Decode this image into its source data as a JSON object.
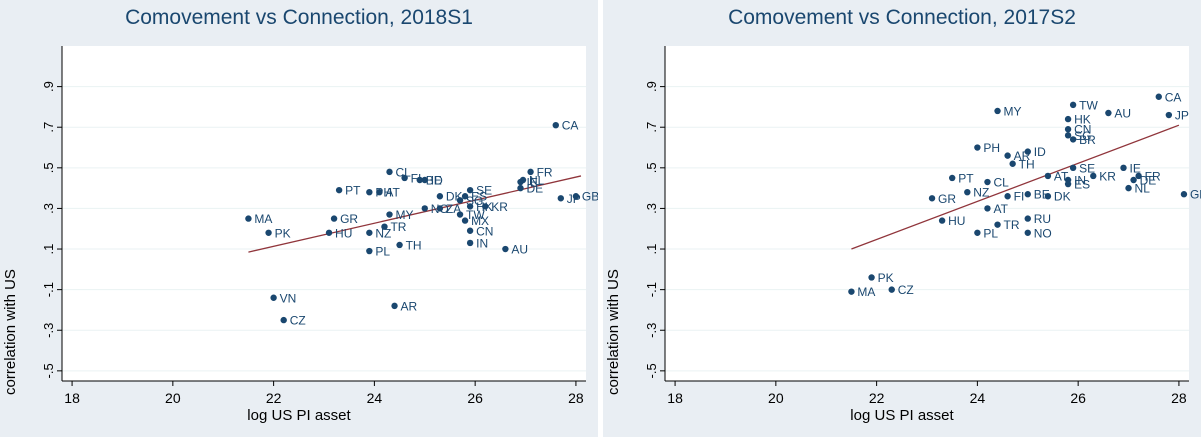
{
  "chart_data": [
    {
      "type": "scatter",
      "title": "Comovement vs Connection, 2018S1",
      "xlabel": "log US PI asset",
      "ylabel": "correlation with US",
      "xlim": [
        17.8,
        28.2
      ],
      "ylim": [
        -0.55,
        1.1
      ],
      "xticks": [
        18,
        20,
        22,
        24,
        26,
        28
      ],
      "xtick_labels": [
        "18",
        "20",
        "22",
        "24",
        "26",
        "28"
      ],
      "yticks": [
        -0.5,
        -0.3,
        -0.1,
        0.1,
        0.3,
        0.5,
        0.7,
        0.9
      ],
      "ytick_labels": [
        "-.5",
        "-.3",
        "-.1",
        ".1",
        ".3",
        ".5",
        ".7",
        ".9"
      ],
      "grid": true,
      "fit_line": {
        "x": [
          21.5,
          28.1
        ],
        "y": [
          0.085,
          0.46
        ]
      },
      "points": [
        {
          "label": "CA",
          "x": 27.6,
          "y": 0.71
        },
        {
          "label": "FR",
          "x": 27.1,
          "y": 0.48
        },
        {
          "label": "NL",
          "x": 26.95,
          "y": 0.44
        },
        {
          "label": "IE",
          "x": 26.9,
          "y": 0.43
        },
        {
          "label": "DE",
          "x": 26.9,
          "y": 0.4
        },
        {
          "label": "JP",
          "x": 27.7,
          "y": 0.35
        },
        {
          "label": "GB",
          "x": 28.0,
          "y": 0.36
        },
        {
          "label": "CL",
          "x": 24.3,
          "y": 0.48
        },
        {
          "label": "FI",
          "x": 24.6,
          "y": 0.45
        },
        {
          "label": "BE",
          "x": 24.9,
          "y": 0.44
        },
        {
          "label": "ID",
          "x": 25.0,
          "y": 0.44
        },
        {
          "label": "PT",
          "x": 23.3,
          "y": 0.39
        },
        {
          "label": "PH",
          "x": 23.9,
          "y": 0.38
        },
        {
          "label": "AT",
          "x": 24.1,
          "y": 0.38
        },
        {
          "label": "SE",
          "x": 25.9,
          "y": 0.39
        },
        {
          "label": "DK",
          "x": 25.3,
          "y": 0.36
        },
        {
          "label": "ES",
          "x": 25.8,
          "y": 0.36
        },
        {
          "label": "SG",
          "x": 25.7,
          "y": 0.34
        },
        {
          "label": "KR",
          "x": 26.2,
          "y": 0.31
        },
        {
          "label": "HK",
          "x": 25.9,
          "y": 0.31
        },
        {
          "label": "NO",
          "x": 25.0,
          "y": 0.3
        },
        {
          "label": "ZA",
          "x": 25.3,
          "y": 0.3
        },
        {
          "label": "TW",
          "x": 25.7,
          "y": 0.27
        },
        {
          "label": "MX",
          "x": 25.8,
          "y": 0.24
        },
        {
          "label": "MY",
          "x": 24.3,
          "y": 0.27
        },
        {
          "label": "MA",
          "x": 21.5,
          "y": 0.25
        },
        {
          "label": "GR",
          "x": 23.2,
          "y": 0.25
        },
        {
          "label": "TR",
          "x": 24.2,
          "y": 0.21
        },
        {
          "label": "NZ",
          "x": 23.9,
          "y": 0.18
        },
        {
          "label": "PK",
          "x": 21.9,
          "y": 0.18
        },
        {
          "label": "HU",
          "x": 23.1,
          "y": 0.18
        },
        {
          "label": "CN",
          "x": 25.9,
          "y": 0.19
        },
        {
          "label": "TH",
          "x": 24.5,
          "y": 0.12
        },
        {
          "label": "IN",
          "x": 25.9,
          "y": 0.13
        },
        {
          "label": "AU",
          "x": 26.6,
          "y": 0.1
        },
        {
          "label": "PL",
          "x": 23.9,
          "y": 0.09
        },
        {
          "label": "VN",
          "x": 22.0,
          "y": -0.14
        },
        {
          "label": "AR",
          "x": 24.4,
          "y": -0.18
        },
        {
          "label": "CZ",
          "x": 22.2,
          "y": -0.25
        }
      ]
    },
    {
      "type": "scatter",
      "title": "Comovement vs Connection, 2017S2",
      "xlabel": "log US PI asset",
      "ylabel": "correlation with US",
      "xlim": [
        17.8,
        28.2
      ],
      "ylim": [
        -0.55,
        1.1
      ],
      "xticks": [
        18,
        20,
        22,
        24,
        26,
        28
      ],
      "xtick_labels": [
        "18",
        "20",
        "22",
        "24",
        "26",
        "28"
      ],
      "yticks": [
        -0.5,
        -0.3,
        -0.1,
        0.1,
        0.3,
        0.5,
        0.7,
        0.9
      ],
      "ytick_labels": [
        "-.5",
        "-.3",
        "-.1",
        ".1",
        ".3",
        ".5",
        ".7",
        ".9"
      ],
      "grid": true,
      "fit_line": {
        "x": [
          21.5,
          28.0
        ],
        "y": [
          0.1,
          0.71
        ]
      },
      "points": [
        {
          "label": "CA",
          "x": 27.6,
          "y": 0.85
        },
        {
          "label": "JP",
          "x": 27.8,
          "y": 0.76
        },
        {
          "label": "TW",
          "x": 25.9,
          "y": 0.81
        },
        {
          "label": "MY",
          "x": 24.4,
          "y": 0.78
        },
        {
          "label": "AU",
          "x": 26.6,
          "y": 0.77
        },
        {
          "label": "HK",
          "x": 25.8,
          "y": 0.74
        },
        {
          "label": "CN",
          "x": 25.8,
          "y": 0.69
        },
        {
          "label": "SG",
          "x": 25.8,
          "y": 0.66
        },
        {
          "label": "BR",
          "x": 25.9,
          "y": 0.64
        },
        {
          "label": "PH",
          "x": 24.0,
          "y": 0.6
        },
        {
          "label": "ID",
          "x": 25.0,
          "y": 0.58
        },
        {
          "label": "AR",
          "x": 24.6,
          "y": 0.56
        },
        {
          "label": "TH",
          "x": 24.7,
          "y": 0.52
        },
        {
          "label": "SE",
          "x": 25.9,
          "y": 0.5
        },
        {
          "label": "IE",
          "x": 26.9,
          "y": 0.5
        },
        {
          "label": "FR",
          "x": 27.2,
          "y": 0.46
        },
        {
          "label": "DE",
          "x": 27.1,
          "y": 0.44
        },
        {
          "label": "KR",
          "x": 26.3,
          "y": 0.46
        },
        {
          "label": "AT",
          "x": 25.4,
          "y": 0.46
        },
        {
          "label": "IN",
          "x": 25.8,
          "y": 0.44
        },
        {
          "label": "ES",
          "x": 25.8,
          "y": 0.42
        },
        {
          "label": "PT",
          "x": 23.5,
          "y": 0.45
        },
        {
          "label": "CL",
          "x": 24.2,
          "y": 0.43
        },
        {
          "label": "NL",
          "x": 27.0,
          "y": 0.4
        },
        {
          "label": "NZ",
          "x": 23.8,
          "y": 0.38
        },
        {
          "label": "BE",
          "x": 25.0,
          "y": 0.37
        },
        {
          "label": "DK",
          "x": 25.4,
          "y": 0.36
        },
        {
          "label": "FI",
          "x": 24.6,
          "y": 0.36
        },
        {
          "label": "GR",
          "x": 23.1,
          "y": 0.35
        },
        {
          "label": "GB",
          "x": 28.1,
          "y": 0.37
        },
        {
          "label": "AT",
          "x": 24.2,
          "y": 0.3
        },
        {
          "label": "RU",
          "x": 25.0,
          "y": 0.25
        },
        {
          "label": "HU",
          "x": 23.3,
          "y": 0.24
        },
        {
          "label": "TR",
          "x": 24.4,
          "y": 0.22
        },
        {
          "label": "PL",
          "x": 24.0,
          "y": 0.18
        },
        {
          "label": "NO",
          "x": 25.0,
          "y": 0.18
        },
        {
          "label": "PK",
          "x": 21.9,
          "y": -0.04
        },
        {
          "label": "MA",
          "x": 21.5,
          "y": -0.11
        },
        {
          "label": "CZ",
          "x": 22.3,
          "y": -0.1
        }
      ]
    }
  ],
  "colors": {
    "marker": "#1a476f",
    "fit_line": "#90353b",
    "grid": "#eaf2f3",
    "plot_bg": "#ffffff",
    "panel_bg": "#e9eef3",
    "title": "#1a476f"
  }
}
